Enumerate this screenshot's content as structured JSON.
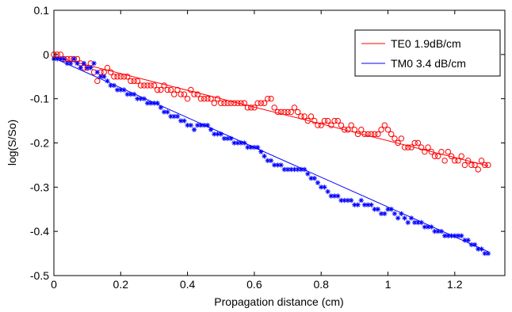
{
  "chart_data": {
    "type": "scatter",
    "xlabel": "Propagation distance (cm)",
    "ylabel": "log(S/So)",
    "xlim": [
      0,
      1.35
    ],
    "ylim": [
      -0.5,
      0.1
    ],
    "x_ticks": [
      0,
      0.2,
      0.4,
      0.6,
      0.8,
      1,
      1.2
    ],
    "x_tick_labels": [
      "0",
      "0.2",
      "0.4",
      "0.6",
      "0.8",
      "1",
      "1.2"
    ],
    "y_ticks": [
      0.1,
      0,
      -0.1,
      -0.2,
      -0.3,
      -0.4,
      -0.5
    ],
    "y_tick_labels": [
      "0.1",
      "0",
      "-0.1",
      "-0.2",
      "-0.3",
      "-0.4",
      "-0.5"
    ],
    "grid": false,
    "legend_position": "top-right",
    "series": [
      {
        "name": "TE0 1.9dB/cm",
        "color": "#ff0000",
        "marker": "circle",
        "fit": {
          "x": [
            0,
            1.3
          ],
          "y": [
            -0.005,
            -0.252
          ]
        },
        "x": [
          0.0,
          0.01,
          0.02,
          0.03,
          0.04,
          0.05,
          0.06,
          0.07,
          0.08,
          0.09,
          0.1,
          0.11,
          0.12,
          0.13,
          0.14,
          0.15,
          0.16,
          0.17,
          0.18,
          0.19,
          0.2,
          0.21,
          0.22,
          0.23,
          0.24,
          0.25,
          0.26,
          0.27,
          0.28,
          0.29,
          0.3,
          0.31,
          0.32,
          0.33,
          0.34,
          0.35,
          0.36,
          0.37,
          0.38,
          0.39,
          0.4,
          0.41,
          0.42,
          0.43,
          0.44,
          0.45,
          0.46,
          0.47,
          0.48,
          0.49,
          0.5,
          0.51,
          0.52,
          0.53,
          0.54,
          0.55,
          0.56,
          0.57,
          0.58,
          0.59,
          0.6,
          0.61,
          0.62,
          0.63,
          0.64,
          0.65,
          0.66,
          0.67,
          0.68,
          0.69,
          0.7,
          0.71,
          0.72,
          0.73,
          0.74,
          0.75,
          0.76,
          0.77,
          0.78,
          0.79,
          0.8,
          0.81,
          0.82,
          0.83,
          0.84,
          0.85,
          0.86,
          0.87,
          0.88,
          0.89,
          0.9,
          0.91,
          0.92,
          0.93,
          0.94,
          0.95,
          0.96,
          0.97,
          0.98,
          0.99,
          1.0,
          1.01,
          1.02,
          1.03,
          1.04,
          1.05,
          1.06,
          1.07,
          1.08,
          1.09,
          1.1,
          1.11,
          1.12,
          1.13,
          1.14,
          1.15,
          1.16,
          1.17,
          1.18,
          1.19,
          1.2,
          1.21,
          1.22,
          1.23,
          1.24,
          1.25,
          1.26,
          1.27,
          1.28,
          1.29,
          1.3
        ],
        "y": [
          0.0,
          0.0,
          0.0,
          -0.01,
          -0.01,
          -0.01,
          -0.01,
          -0.01,
          -0.02,
          -0.03,
          -0.03,
          -0.02,
          -0.04,
          -0.06,
          -0.04,
          -0.04,
          -0.03,
          -0.04,
          -0.05,
          -0.05,
          -0.05,
          -0.05,
          -0.05,
          -0.06,
          -0.06,
          -0.06,
          -0.07,
          -0.07,
          -0.07,
          -0.07,
          -0.07,
          -0.08,
          -0.08,
          -0.07,
          -0.08,
          -0.08,
          -0.09,
          -0.08,
          -0.09,
          -0.09,
          -0.1,
          -0.08,
          -0.09,
          -0.09,
          -0.1,
          -0.1,
          -0.1,
          -0.1,
          -0.11,
          -0.1,
          -0.11,
          -0.11,
          -0.11,
          -0.11,
          -0.11,
          -0.11,
          -0.11,
          -0.11,
          -0.12,
          -0.12,
          -0.12,
          -0.11,
          -0.11,
          -0.11,
          -0.1,
          -0.1,
          -0.12,
          -0.13,
          -0.13,
          -0.13,
          -0.13,
          -0.13,
          -0.12,
          -0.13,
          -0.14,
          -0.14,
          -0.15,
          -0.14,
          -0.15,
          -0.16,
          -0.16,
          -0.15,
          -0.15,
          -0.16,
          -0.15,
          -0.15,
          -0.16,
          -0.17,
          -0.17,
          -0.16,
          -0.17,
          -0.18,
          -0.17,
          -0.18,
          -0.18,
          -0.18,
          -0.18,
          -0.18,
          -0.17,
          -0.16,
          -0.17,
          -0.18,
          -0.19,
          -0.2,
          -0.19,
          -0.21,
          -0.21,
          -0.21,
          -0.2,
          -0.2,
          -0.21,
          -0.22,
          -0.21,
          -0.22,
          -0.23,
          -0.23,
          -0.22,
          -0.24,
          -0.22,
          -0.23,
          -0.24,
          -0.24,
          -0.23,
          -0.25,
          -0.24,
          -0.25,
          -0.25,
          -0.26,
          -0.24,
          -0.25,
          -0.25
        ]
      },
      {
        "name": "TM0 3.4 dB/cm",
        "color": "#0000ff",
        "marker": "asterisk",
        "fit": {
          "x": [
            0,
            1.3
          ],
          "y": [
            -0.008,
            -0.446
          ]
        },
        "x": [
          0.0,
          0.01,
          0.02,
          0.03,
          0.04,
          0.05,
          0.06,
          0.07,
          0.08,
          0.09,
          0.1,
          0.11,
          0.12,
          0.13,
          0.14,
          0.15,
          0.16,
          0.17,
          0.18,
          0.19,
          0.2,
          0.21,
          0.22,
          0.23,
          0.24,
          0.25,
          0.26,
          0.27,
          0.28,
          0.29,
          0.3,
          0.31,
          0.32,
          0.33,
          0.34,
          0.35,
          0.36,
          0.37,
          0.38,
          0.39,
          0.4,
          0.41,
          0.42,
          0.43,
          0.44,
          0.45,
          0.46,
          0.47,
          0.48,
          0.49,
          0.5,
          0.51,
          0.52,
          0.53,
          0.54,
          0.55,
          0.56,
          0.57,
          0.58,
          0.59,
          0.6,
          0.61,
          0.62,
          0.63,
          0.64,
          0.65,
          0.66,
          0.67,
          0.68,
          0.69,
          0.7,
          0.71,
          0.72,
          0.73,
          0.74,
          0.75,
          0.76,
          0.77,
          0.78,
          0.79,
          0.8,
          0.81,
          0.82,
          0.83,
          0.84,
          0.85,
          0.86,
          0.87,
          0.88,
          0.89,
          0.9,
          0.91,
          0.92,
          0.93,
          0.94,
          0.95,
          0.96,
          0.97,
          0.98,
          0.99,
          1.0,
          1.01,
          1.02,
          1.03,
          1.04,
          1.05,
          1.06,
          1.07,
          1.08,
          1.09,
          1.1,
          1.11,
          1.12,
          1.13,
          1.14,
          1.15,
          1.16,
          1.17,
          1.18,
          1.19,
          1.2,
          1.21,
          1.22,
          1.23,
          1.24,
          1.25,
          1.26,
          1.27,
          1.28,
          1.29,
          1.3
        ],
        "y": [
          -0.01,
          -0.01,
          -0.01,
          -0.01,
          -0.02,
          -0.02,
          -0.01,
          -0.02,
          -0.03,
          -0.02,
          -0.03,
          -0.03,
          -0.02,
          -0.04,
          -0.05,
          -0.05,
          -0.06,
          -0.07,
          -0.07,
          -0.08,
          -0.08,
          -0.08,
          -0.09,
          -0.09,
          -0.09,
          -0.1,
          -0.1,
          -0.1,
          -0.11,
          -0.11,
          -0.11,
          -0.11,
          -0.12,
          -0.13,
          -0.13,
          -0.14,
          -0.14,
          -0.14,
          -0.15,
          -0.15,
          -0.16,
          -0.16,
          -0.17,
          -0.16,
          -0.16,
          -0.16,
          -0.16,
          -0.17,
          -0.18,
          -0.18,
          -0.18,
          -0.19,
          -0.19,
          -0.19,
          -0.2,
          -0.2,
          -0.2,
          -0.2,
          -0.21,
          -0.21,
          -0.21,
          -0.21,
          -0.22,
          -0.23,
          -0.24,
          -0.24,
          -0.25,
          -0.25,
          -0.25,
          -0.26,
          -0.26,
          -0.26,
          -0.26,
          -0.26,
          -0.26,
          -0.26,
          -0.27,
          -0.28,
          -0.28,
          -0.29,
          -0.3,
          -0.3,
          -0.31,
          -0.32,
          -0.32,
          -0.32,
          -0.33,
          -0.33,
          -0.33,
          -0.33,
          -0.34,
          -0.34,
          -0.33,
          -0.34,
          -0.34,
          -0.34,
          -0.35,
          -0.35,
          -0.36,
          -0.36,
          -0.35,
          -0.35,
          -0.36,
          -0.37,
          -0.36,
          -0.37,
          -0.38,
          -0.37,
          -0.38,
          -0.38,
          -0.38,
          -0.39,
          -0.39,
          -0.39,
          -0.4,
          -0.4,
          -0.4,
          -0.41,
          -0.41,
          -0.41,
          -0.41,
          -0.41,
          -0.41,
          -0.42,
          -0.42,
          -0.43,
          -0.43,
          -0.44,
          -0.44,
          -0.45,
          -0.45
        ]
      }
    ]
  }
}
